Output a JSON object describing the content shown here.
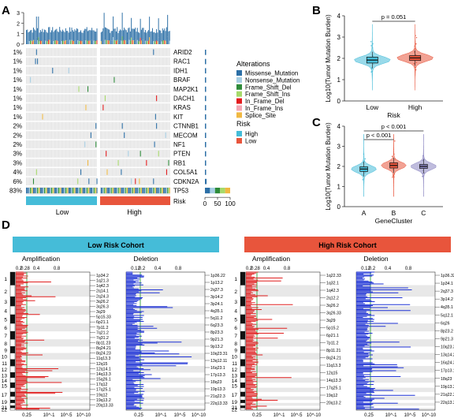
{
  "panel_labels": {
    "a": "A",
    "b": "B",
    "c": "C",
    "d": "D"
  },
  "colors": {
    "missense": "#2c6fa6",
    "nonsense": "#a6cee3",
    "frame_shift_del": "#2e8b3a",
    "frame_shift_ins": "#a6d96a",
    "in_frame_del": "#e31a1c",
    "in_frame_ins": "#f4a6b3",
    "splice_site": "#f0b842",
    "low": "#45bcd8",
    "high": "#e8553c",
    "amp": "#e01f1f",
    "del": "#1f33d6"
  },
  "oncoplot": {
    "genes": [
      "ARID2",
      "RAC1",
      "IDH1",
      "BRAF",
      "MAP2K1",
      "DACH1",
      "KRAS",
      "KIT",
      "CTNNB1",
      "MECOM",
      "NF1",
      "PTEN",
      "RB1",
      "COL5A1",
      "CDKN2A",
      "TP53"
    ],
    "percents": [
      "1%",
      "1%",
      "1%",
      "1%",
      "1%",
      "1%",
      "1%",
      "1%",
      "2%",
      "2%",
      "2%",
      "3%",
      "3%",
      "4%",
      "6%",
      "83%"
    ],
    "top_axis_ticks": [
      "3",
      "2",
      "1",
      "0"
    ],
    "side_axis_ticks": [
      "0",
      "50",
      "100"
    ],
    "risk_row_label": "Risk",
    "group_labels": [
      "Low",
      "High"
    ]
  },
  "legend": {
    "alterations_title": "Alterations",
    "alterations": [
      "Missense_Mutation",
      "Nonsense_Mutation",
      "Frame_Shift_Del",
      "Frame_Shift_Ins",
      "In_Frame_Del",
      "In_Frame_Ins",
      "Splice_Site"
    ],
    "risk_title": "Risk",
    "risk": [
      "High",
      "Low"
    ]
  },
  "chart_data": [
    {
      "type": "violin",
      "panel": "B",
      "ylabel": "Log10(Tumor Mutation Burden)",
      "xlabel": "Risk",
      "categories": [
        "Low",
        "High"
      ],
      "ylim": [
        0,
        4
      ],
      "yticks": [
        "0",
        "1",
        "2",
        "3",
        "4"
      ],
      "medians": [
        1.92,
        2.02
      ],
      "q1": [
        1.78,
        1.9
      ],
      "q3": [
        2.06,
        2.13
      ],
      "annotation": "p = 0.051"
    },
    {
      "type": "violin",
      "panel": "C",
      "ylabel": "Log10(Tumor Mutation Burden)",
      "xlabel": "GeneCluster",
      "categories": [
        "A",
        "B",
        "C"
      ],
      "ylim": [
        0,
        4
      ],
      "yticks": [
        "0",
        "1",
        "2",
        "3",
        "4"
      ],
      "medians": [
        1.87,
        2.05,
        2.0
      ],
      "q1": [
        1.75,
        1.92,
        1.9
      ],
      "q3": [
        1.98,
        2.18,
        2.1
      ],
      "annotations": [
        "p < 0.001",
        "p < 0.001"
      ]
    }
  ],
  "cnv": {
    "cohorts": [
      "Low Risk Cohort",
      "High Risk Cohort"
    ],
    "amp_title": "Amplification",
    "del_title": "Deletion",
    "chromosomes": [
      "1",
      "2",
      "3",
      "4",
      "5",
      "6",
      "7",
      "8",
      "9",
      "10",
      "11",
      "12",
      "13",
      "14",
      "15",
      "16",
      "17",
      "18",
      "19",
      "20",
      "21",
      "22"
    ],
    "low_amp_labels": [
      "1p34.2",
      "1q21.3",
      "1q42.3",
      "2q14.1",
      "2q24.3",
      "3q26.2",
      "3q26.3",
      "3q29",
      "5p15.33",
      "6p21.1",
      "7p11.2",
      "7q21.2",
      "7q31.2",
      "8p11.23",
      "8q24.21",
      "8q24.23",
      "11q13.3",
      "12q15",
      "12q14.1",
      "14q13.3",
      "15q26.1",
      "17q12",
      "17q25.1",
      "19q12",
      "19q13.2",
      "20q13.33"
    ],
    "low_del_labels": [
      "1p36.22",
      "1p13.2",
      "2q37.3",
      "3p14.2",
      "3p24.1",
      "4q35.1",
      "5q11.2",
      "6q23.3",
      "8p23.3",
      "9p21.3",
      "9p13.2",
      "10q23.31",
      "13q12.11",
      "16q23.1",
      "17p13.3",
      "18q23",
      "19p13.3",
      "21q22.3",
      "22q13.33"
    ],
    "high_amp_labels": [
      "1q22.33",
      "1q32.1",
      "1q42.3",
      "2q12.2",
      "3q26.2",
      "3q26.33",
      "3q29",
      "5p15.2",
      "6p21.1",
      "7p11.2",
      "8p11.21",
      "8q24.21",
      "11q13.3",
      "12q15",
      "14q13.3",
      "17q25.1",
      "19q12",
      "20q13.2"
    ],
    "high_del_labels": [
      "1p36.32",
      "1p34.1",
      "2q37.3",
      "3p14.2",
      "4q35.1",
      "5q12.1",
      "6q26",
      "8p23.2",
      "9p21.3",
      "10q23.31",
      "13q14.2",
      "16q24.3",
      "17p13.1",
      "18q23",
      "19p13.3",
      "21q22.3",
      "22q13.32"
    ],
    "amp_top_ticks": [
      "0.2",
      "0.28",
      "0.4",
      "0.8"
    ],
    "del_top_ticks": [
      "0.12",
      "0.2",
      "0.4",
      "0.8"
    ],
    "bottom_ticks": [
      "0.25",
      "10^-1",
      "10^-5",
      "10^-10"
    ]
  }
}
